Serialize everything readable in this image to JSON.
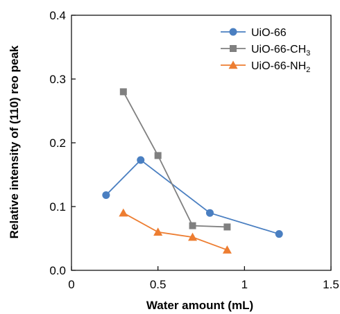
{
  "chart_data": {
    "type": "line",
    "xlabel": "Water amount (mL)",
    "ylabel": "Relative intensity of (110) reo peak",
    "xlim": [
      0,
      1.5
    ],
    "ylim": [
      0,
      0.4
    ],
    "xticks": [
      0,
      0.5,
      1,
      1.5
    ],
    "xtick_labels": [
      "0",
      "0.5",
      "1",
      "1.5"
    ],
    "yticks": [
      0,
      0.1,
      0.2,
      0.3,
      0.4
    ],
    "ytick_labels": [
      "0.0",
      "0.1",
      "0.2",
      "0.3",
      "0.4"
    ],
    "grid": false,
    "legend_position": "top-right",
    "series": [
      {
        "name": "UiO-66",
        "name_sub": "",
        "marker": "circle",
        "color": "#4a7fc1",
        "x": [
          0.2,
          0.4,
          0.8,
          1.2
        ],
        "y": [
          0.118,
          0.173,
          0.09,
          0.057
        ]
      },
      {
        "name": "UiO-66-CH",
        "name_sub": "3",
        "marker": "square",
        "color": "#808080",
        "x": [
          0.3,
          0.5,
          0.7,
          0.9
        ],
        "y": [
          0.28,
          0.18,
          0.07,
          0.068
        ]
      },
      {
        "name": "UiO-66-NH",
        "name_sub": "2",
        "marker": "triangle",
        "color": "#ed7d31",
        "x": [
          0.3,
          0.5,
          0.7,
          0.9
        ],
        "y": [
          0.09,
          0.06,
          0.052,
          0.032
        ]
      }
    ]
  }
}
